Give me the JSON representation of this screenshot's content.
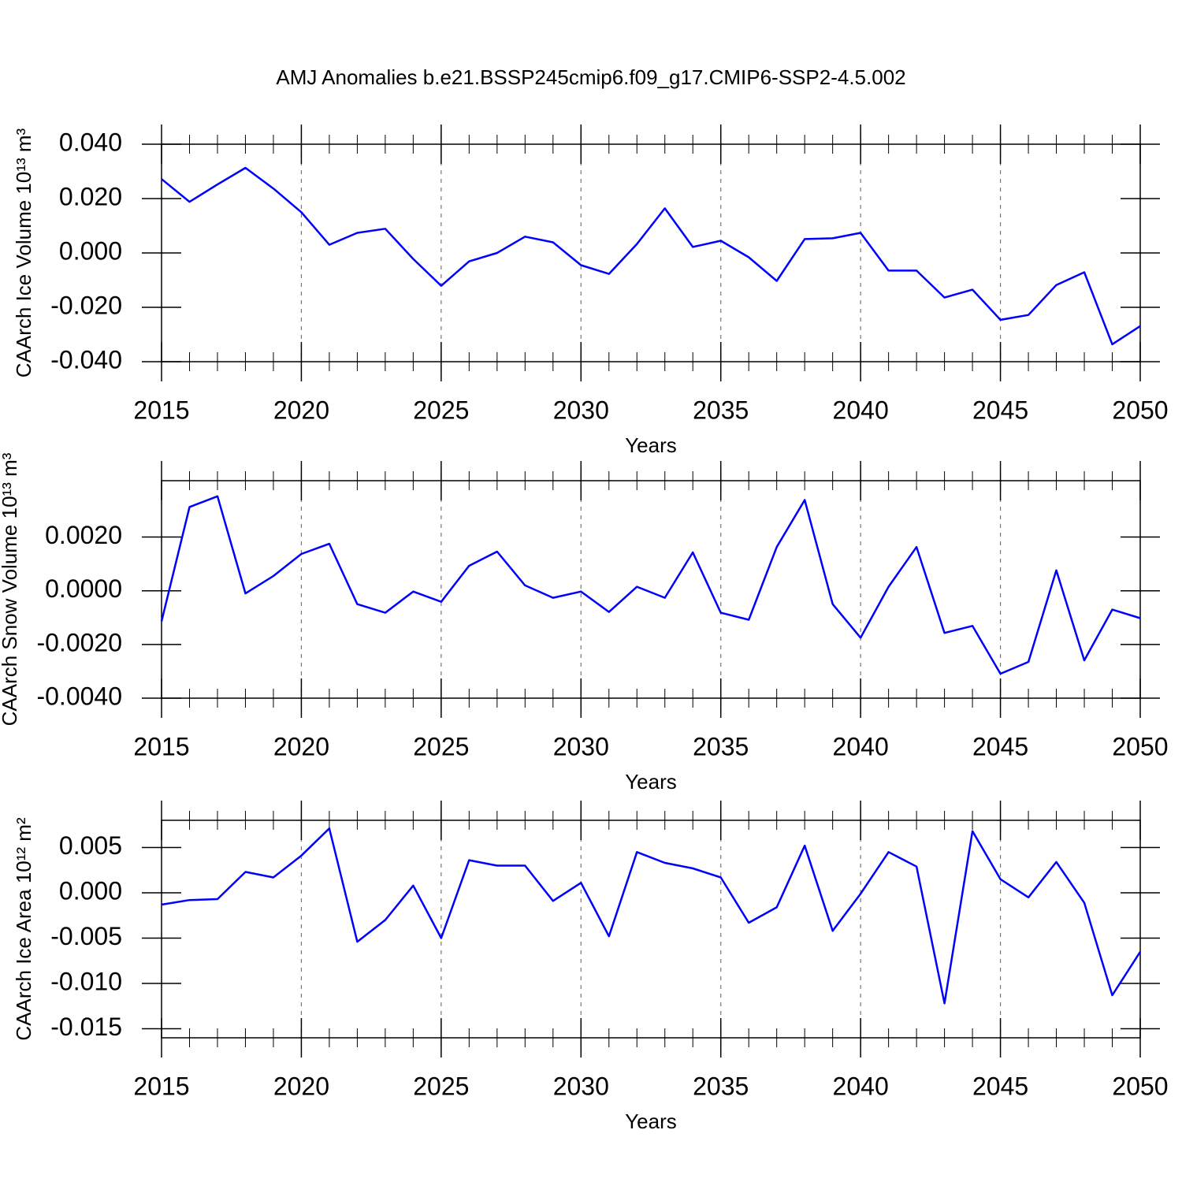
{
  "chart_data": [
    {
      "type": "line",
      "title": "AMJ Anomalies b.e21.BSSP245cmip6.f09_g17.CMIP6-SSP2-4.5.002",
      "ylabel": "CAArch Ice Volume 10¹³ m³",
      "xlabel": "Years",
      "x": [
        2015,
        2016,
        2017,
        2018,
        2019,
        2020,
        2021,
        2022,
        2023,
        2024,
        2025,
        2026,
        2027,
        2028,
        2029,
        2030,
        2031,
        2032,
        2033,
        2034,
        2035,
        2036,
        2037,
        2038,
        2039,
        2040,
        2041,
        2042,
        2043,
        2044,
        2045,
        2046,
        2047,
        2048,
        2049,
        2050
      ],
      "series": [
        {
          "color": "#0000ff",
          "values": [
            0.0272,
            0.0188,
            0.0252,
            0.0313,
            0.0237,
            0.015,
            0.003,
            0.0074,
            0.0089,
            -0.0022,
            -0.0121,
            -0.0031,
            0.0,
            0.006,
            0.0039,
            -0.0045,
            -0.0077,
            0.0033,
            0.0164,
            0.0022,
            0.0045,
            -0.0016,
            -0.0103,
            0.0051,
            0.0054,
            0.0074,
            -0.0065,
            -0.0065,
            -0.0164,
            -0.0135,
            -0.0246,
            -0.0228,
            -0.0118,
            -0.0071,
            -0.0336,
            -0.0269
          ]
        }
      ],
      "xlim": [
        2015,
        2050
      ],
      "xticks": [
        2015,
        2020,
        2025,
        2030,
        2035,
        2040,
        2045,
        2050
      ],
      "ylim": [
        -0.04,
        0.04
      ],
      "yticks": [
        {
          "value": -0.04,
          "label": "-0.040"
        },
        {
          "value": -0.02,
          "label": "-0.020"
        },
        {
          "value": 0,
          "label": "0.000"
        },
        {
          "value": 0.02,
          "label": "0.020"
        },
        {
          "value": 0.04,
          "label": "0.040"
        }
      ],
      "grid": "x-dashed"
    },
    {
      "type": "line",
      "ylabel": "CAArch Snow Volume 10¹³ m³",
      "xlabel": "Years",
      "x": [
        2015,
        2016,
        2017,
        2018,
        2019,
        2020,
        2021,
        2022,
        2023,
        2024,
        2025,
        2026,
        2027,
        2028,
        2029,
        2030,
        2031,
        2032,
        2033,
        2034,
        2035,
        2036,
        2037,
        2038,
        2039,
        2040,
        2041,
        2042,
        2043,
        2044,
        2045,
        2046,
        2047,
        2048,
        2049,
        2050
      ],
      "series": [
        {
          "color": "#0000ff",
          "values": [
            -0.00114,
            0.00312,
            0.00352,
            -0.0001,
            0.00055,
            0.00137,
            0.00175,
            -0.0005,
            -0.00082,
            -3e-05,
            -0.00041,
            0.00093,
            0.00146,
            0.0002,
            -0.00026,
            -3e-05,
            -0.00079,
            0.00015,
            -0.00026,
            0.00143,
            -0.00082,
            -0.00108,
            0.00163,
            0.00338,
            -0.0005,
            -0.00175,
            0.00015,
            0.00163,
            -0.00157,
            -0.00131,
            -0.00309,
            -0.00265,
            0.00076,
            -0.00259,
            -0.0007,
            -0.00102
          ]
        }
      ],
      "xlim": [
        2015,
        2050
      ],
      "xticks": [
        2015,
        2020,
        2025,
        2030,
        2035,
        2040,
        2045,
        2050
      ],
      "ylim": [
        -0.004,
        0.0041
      ],
      "yticks": [
        {
          "value": -0.004,
          "label": "-0.0040"
        },
        {
          "value": -0.002,
          "label": "-0.0020"
        },
        {
          "value": 0,
          "label": "0.0000"
        },
        {
          "value": 0.002,
          "label": "0.0020"
        }
      ],
      "grid": "x-dashed"
    },
    {
      "type": "line",
      "ylabel": "CAArch Ice Area 10¹² m²",
      "xlabel": "Years",
      "x": [
        2015,
        2016,
        2017,
        2018,
        2019,
        2020,
        2021,
        2022,
        2023,
        2024,
        2025,
        2026,
        2027,
        2028,
        2029,
        2030,
        2031,
        2032,
        2033,
        2034,
        2035,
        2036,
        2037,
        2038,
        2039,
        2040,
        2041,
        2042,
        2043,
        2044,
        2045,
        2046,
        2047,
        2048,
        2049,
        2050
      ],
      "series": [
        {
          "color": "#0000ff",
          "values": [
            -0.0013,
            -0.0008,
            -0.0007,
            0.0023,
            0.0017,
            0.0041,
            0.0071,
            -0.0054,
            -0.003,
            0.0008,
            -0.005,
            0.0036,
            0.003,
            0.003,
            -0.0009,
            0.0011,
            -0.0048,
            0.0045,
            0.0033,
            0.0027,
            0.0017,
            -0.0033,
            -0.0016,
            0.0052,
            -0.0042,
            -0.0001,
            0.0045,
            0.0029,
            -0.0122,
            0.0068,
            0.0015,
            -0.0005,
            0.0034,
            -0.0011,
            -0.0113,
            -0.0065
          ]
        }
      ],
      "xlim": [
        2015,
        2050
      ],
      "xticks": [
        2015,
        2020,
        2025,
        2030,
        2035,
        2040,
        2045,
        2050
      ],
      "ylim": [
        -0.016,
        0.008
      ],
      "yticks": [
        {
          "value": -0.015,
          "label": "-0.015"
        },
        {
          "value": -0.01,
          "label": "-0.010"
        },
        {
          "value": -0.005,
          "label": "-0.005"
        },
        {
          "value": 0,
          "label": "0.000"
        },
        {
          "value": 0.005,
          "label": "0.005"
        }
      ],
      "grid": "x-dashed"
    }
  ]
}
